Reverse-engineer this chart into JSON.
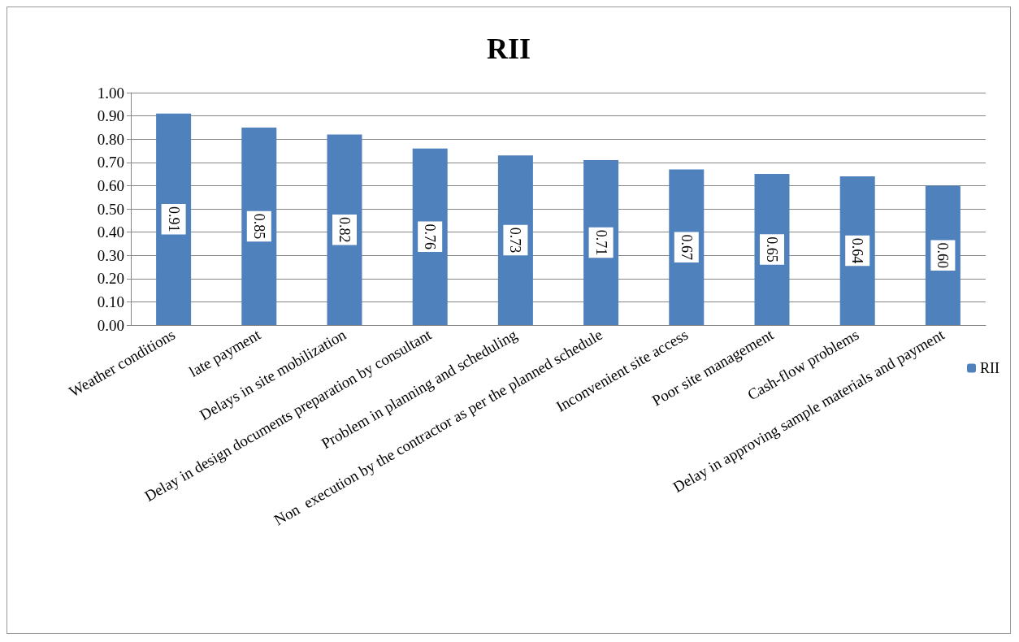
{
  "chart_data": {
    "type": "bar",
    "title": "RII",
    "categories": [
      "Weather conditions",
      "late payment",
      "Delays in site mobilization",
      "Delay in design documents preparation by consultant",
      "Problem in planning and scheduling",
      "Non  execution by the contractor as per the planned schedule",
      "Inconvenient site access",
      "Poor site management",
      "Cash-flow problems",
      "Delay in approving sample materials and payment"
    ],
    "series": [
      {
        "name": "RII",
        "color": "#4f81bd",
        "values": [
          0.91,
          0.85,
          0.82,
          0.76,
          0.73,
          0.71,
          0.67,
          0.65,
          0.64,
          0.6
        ],
        "value_labels": [
          "0.91",
          "0.85",
          "0.82",
          "0.76",
          "0.73",
          "0.71",
          "0.67",
          "0.65",
          "0.64",
          "0.60"
        ]
      }
    ],
    "ylim": [
      0,
      1
    ],
    "yticks": [
      {
        "value": 0,
        "label": "0.00"
      },
      {
        "value": 0.1,
        "label": "0.10"
      },
      {
        "value": 0.2,
        "label": "0.20"
      },
      {
        "value": 0.3,
        "label": "0.30"
      },
      {
        "value": 0.4,
        "label": "0.40"
      },
      {
        "value": 0.5,
        "label": "0.50"
      },
      {
        "value": 0.6,
        "label": "0.60"
      },
      {
        "value": 0.7,
        "label": "0.70"
      },
      {
        "value": 0.8,
        "label": "0.80"
      },
      {
        "value": 0.9,
        "label": "0.90"
      },
      {
        "value": 1,
        "label": "1.00"
      }
    ],
    "grid": true,
    "legend": "right"
  }
}
